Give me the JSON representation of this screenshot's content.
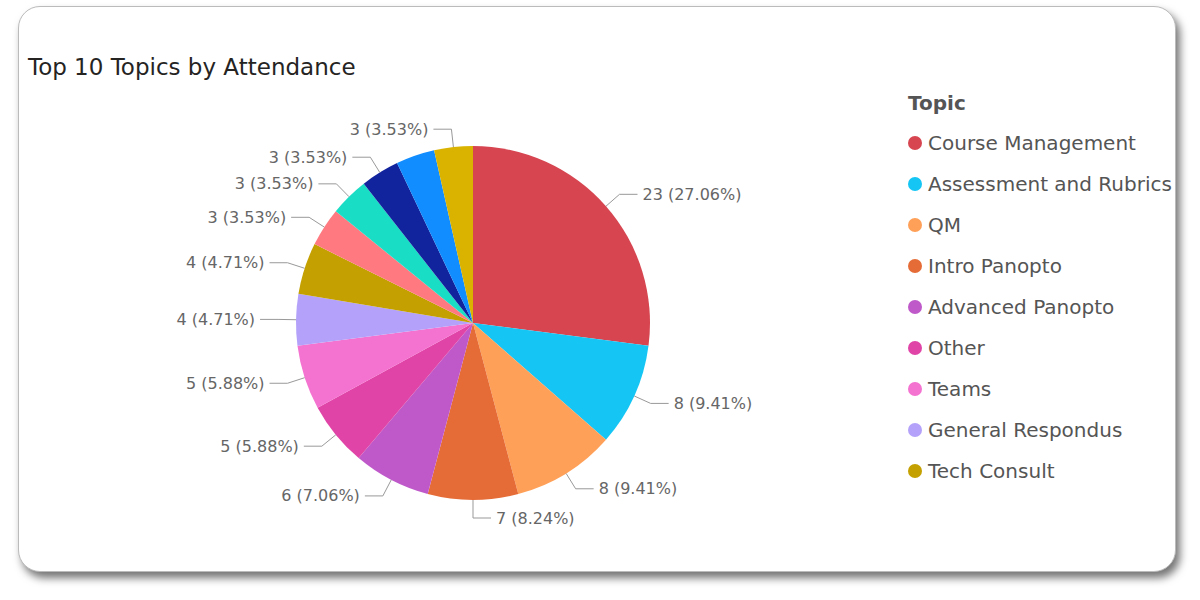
{
  "chart_data": {
    "type": "pie",
    "title": "Top 10 Topics by Attendance",
    "legend_title": "Topic",
    "categories": [
      "Course Management",
      "Assessment and Rubrics",
      "QM",
      "Intro Panopto",
      "Advanced Panopto",
      "Other",
      "Teams",
      "General Respondus",
      "Tech Consult",
      null,
      null,
      null,
      null,
      null
    ],
    "values": [
      23,
      8,
      8,
      7,
      6,
      5,
      5,
      4,
      4,
      3,
      3,
      3,
      3,
      3
    ],
    "value_labels": [
      "23 (27.06%)",
      "8 (9.41%)",
      "8 (9.41%)",
      "7 (8.24%)",
      "6 (7.06%)",
      "5 (5.88%)",
      "5 (5.88%)",
      "4 (4.71%)",
      "4 (4.71%)",
      "3 (3.53%)",
      "3 (3.53%)",
      "3 (3.53%)",
      null,
      "3 (3.53%)"
    ],
    "colors": [
      "#D64550",
      "#15C6F4",
      "#FFA058",
      "#E66C37",
      "#BF59CA",
      "#E044A7",
      "#F472D0",
      "#B4A2FA",
      "#C4A000",
      "#FE7A80",
      "#1ADDC5",
      "#12239E",
      "#118DFF",
      "#D9B300"
    ],
    "data_labels": true,
    "legend": "right"
  }
}
